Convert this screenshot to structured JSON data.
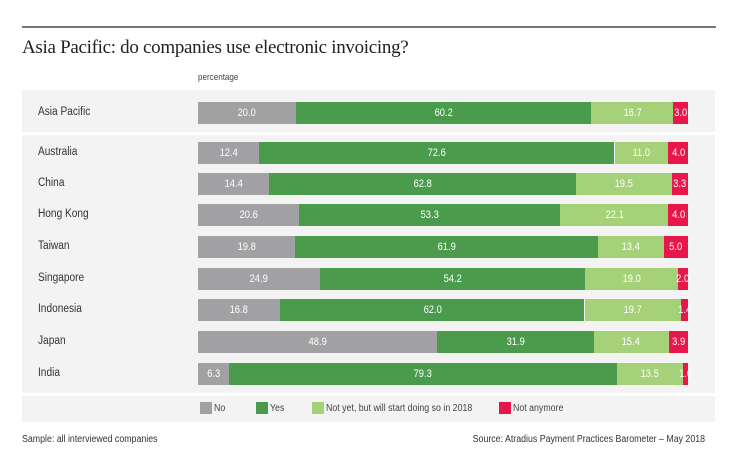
{
  "chart_data": {
    "type": "bar",
    "orientation": "horizontal",
    "stacked": true,
    "title": "Asia Pacific: do companies use electronic invoicing?",
    "unit_label": "percentage",
    "categories": [
      "Asia Pacific",
      "Australia",
      "China",
      "Hong Kong",
      "Taiwan",
      "Singapore",
      "Indonesia",
      "Japan",
      "India"
    ],
    "series": [
      {
        "name": "No",
        "color": "#a1a1a4",
        "values": [
          20.0,
          12.4,
          14.4,
          20.6,
          19.8,
          24.9,
          16.8,
          48.9,
          6.3
        ]
      },
      {
        "name": "Yes",
        "color": "#4a9c4c",
        "values": [
          60.2,
          72.6,
          62.8,
          53.3,
          61.9,
          54.2,
          62.0,
          31.9,
          79.3
        ]
      },
      {
        "name": "Not yet, but will start doing so in 2018",
        "color": "#a5d178",
        "values": [
          16.7,
          11.0,
          19.5,
          22.1,
          13.4,
          19.0,
          19.7,
          15.4,
          13.5
        ]
      },
      {
        "name": "Not anymore",
        "color": "#e8174b",
        "values": [
          3.0,
          4.0,
          3.3,
          4.0,
          5.0,
          2.0,
          1.4,
          3.9,
          1.0
        ]
      }
    ],
    "legend_placement": "bottom",
    "grid": false
  },
  "footer": {
    "sample": "Sample: all interviewed companies",
    "source": "Source: Atradius Payment Practices Barometer – May 2018"
  }
}
